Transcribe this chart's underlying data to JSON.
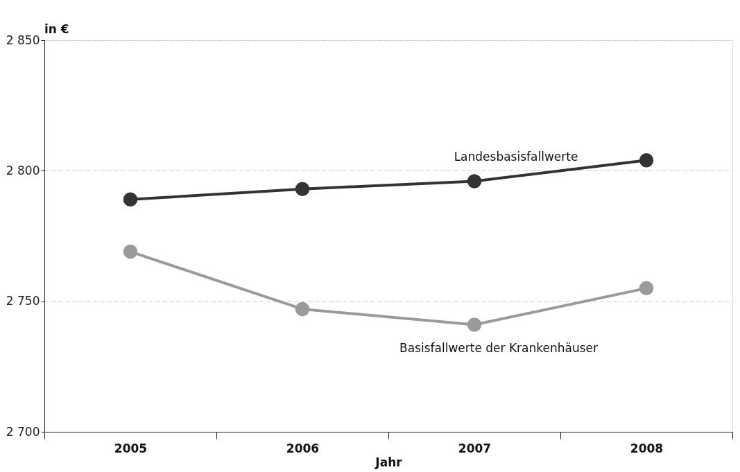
{
  "chart_data": {
    "type": "line",
    "ylabel": "in €",
    "xlabel": "Jahr",
    "categories": [
      "2005",
      "2006",
      "2007",
      "2008"
    ],
    "series": [
      {
        "name": "Landesbasisfallwerte",
        "color": "#333333",
        "values": [
          2789,
          2793,
          2796,
          2804
        ]
      },
      {
        "name": "Basisfallwerte der Krankenhäuser",
        "color": "#9a9a9a",
        "values": [
          2769,
          2747,
          2741,
          2755
        ]
      }
    ],
    "ylim": [
      2700,
      2850
    ],
    "yticks": [
      {
        "value": 2700,
        "label": "2 700"
      },
      {
        "value": 2750,
        "label": "2 750"
      },
      {
        "value": 2800,
        "label": "2 800"
      },
      {
        "value": 2850,
        "label": "2 850"
      }
    ],
    "grid": "y",
    "marker": "circle",
    "line_style": "solid"
  }
}
